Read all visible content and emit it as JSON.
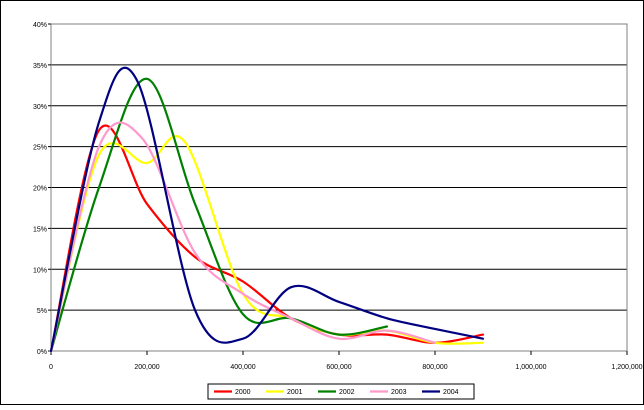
{
  "chart_data": {
    "type": "line",
    "title": "",
    "xlabel": "",
    "ylabel": "",
    "xlim": [
      0,
      1200000
    ],
    "ylim": [
      0,
      0.4
    ],
    "grid": true,
    "legend_position": "bottom",
    "x_ticks": [
      {
        "value": 0,
        "label": "0"
      },
      {
        "value": 200000,
        "label": "200,000"
      },
      {
        "value": 400000,
        "label": "400,000"
      },
      {
        "value": 600000,
        "label": "600,000"
      },
      {
        "value": 800000,
        "label": "800,000"
      },
      {
        "value": 1000000,
        "label": "1,000,000"
      },
      {
        "value": 1200000,
        "label": "1,200,000"
      }
    ],
    "y_ticks": [
      {
        "value": 0.0,
        "label": "0%"
      },
      {
        "value": 0.05,
        "label": "5%"
      },
      {
        "value": 0.1,
        "label": "10%"
      },
      {
        "value": 0.15,
        "label": "15%"
      },
      {
        "value": 0.2,
        "label": "20%"
      },
      {
        "value": 0.25,
        "label": "25%"
      },
      {
        "value": 0.3,
        "label": "30%"
      },
      {
        "value": 0.35,
        "label": "35%"
      },
      {
        "value": 0.4,
        "label": "40%"
      }
    ],
    "series": [
      {
        "name": "2000",
        "color": "#ff0000",
        "x": [
          0,
          100000,
          200000,
          300000,
          400000,
          500000,
          600000,
          700000,
          800000,
          900000
        ],
        "y": [
          0.0,
          0.27,
          0.18,
          0.115,
          0.085,
          0.04,
          0.02,
          0.02,
          0.01,
          0.02
        ]
      },
      {
        "name": "2001",
        "color": "#ffff00",
        "x": [
          0,
          100000,
          200000,
          280000,
          400000,
          500000,
          600000,
          700000,
          800000,
          900000
        ],
        "y": [
          0.0,
          0.24,
          0.23,
          0.255,
          0.07,
          0.04,
          0.02,
          0.025,
          0.01,
          0.01
        ]
      },
      {
        "name": "2002",
        "color": "#008000",
        "x": [
          0,
          100000,
          200000,
          300000,
          400000,
          500000,
          600000,
          700000
        ],
        "y": [
          0.0,
          0.2,
          0.333,
          0.18,
          0.045,
          0.04,
          0.02,
          0.03
        ]
      },
      {
        "name": "2003",
        "color": "#ff99cc",
        "x": [
          0,
          100000,
          190000,
          300000,
          400000,
          500000,
          600000,
          700000,
          800000
        ],
        "y": [
          0.0,
          0.25,
          0.26,
          0.12,
          0.07,
          0.04,
          0.015,
          0.025,
          0.01
        ]
      },
      {
        "name": "2004",
        "color": "#000080",
        "x": [
          0,
          100000,
          180000,
          300000,
          400000,
          500000,
          600000,
          700000,
          800000,
          900000
        ],
        "y": [
          0.0,
          0.28,
          0.33,
          0.05,
          0.015,
          0.078,
          0.06,
          0.04,
          0.027,
          0.015
        ]
      }
    ]
  }
}
